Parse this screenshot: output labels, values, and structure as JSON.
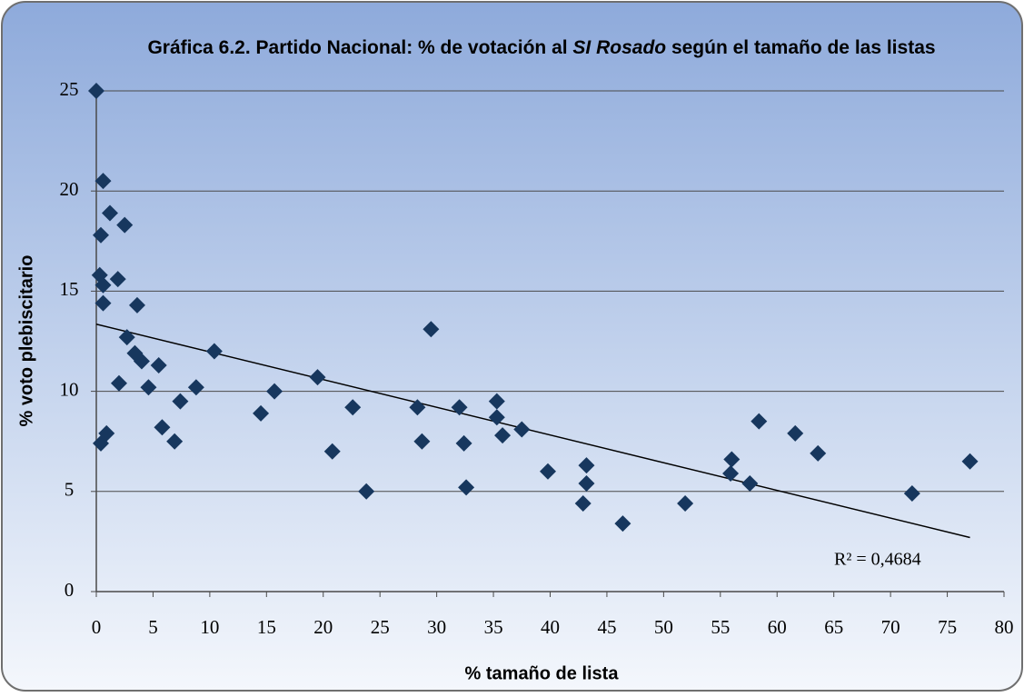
{
  "chart_data": {
    "type": "scatter",
    "title": [
      {
        "text": "Gráfica 6.2. Partido Nacional: % de votación al ",
        "italic": false
      },
      {
        "text": "SI Rosado",
        "italic": true
      },
      {
        "text": " según el tamaño de las listas",
        "italic": false
      }
    ],
    "xlabel": "% tamaño de lista",
    "ylabel": "% voto plebiscitario",
    "xlim": [
      0,
      80
    ],
    "ylim": [
      0,
      25
    ],
    "xticks": [
      0,
      5,
      10,
      15,
      20,
      25,
      30,
      35,
      40,
      45,
      50,
      55,
      60,
      65,
      70,
      75,
      80
    ],
    "yticks": [
      0,
      5,
      10,
      15,
      20,
      25
    ],
    "grid": true,
    "color": "#17375e",
    "x": [
      0,
      0.6,
      0.4,
      1.2,
      2.5,
      0.3,
      0.6,
      0.6,
      1.9,
      3.6,
      2.7,
      3.4,
      4.0,
      5.5,
      4.6,
      2.0,
      10.4,
      8.8,
      7.4,
      5.8,
      6.9,
      0.9,
      0.4,
      14.5,
      15.7,
      19.5,
      20.8,
      22.6,
      23.8,
      28.3,
      29.5,
      28.7,
      32.0,
      32.4,
      32.6,
      35.3,
      35.3,
      35.8,
      37.5,
      39.8,
      43.2,
      43.2,
      42.9,
      46.4,
      51.9,
      56.0,
      55.9,
      57.6,
      58.4,
      61.6,
      63.6,
      71.9,
      77.0
    ],
    "values": [
      25,
      20.5,
      17.8,
      18.9,
      18.3,
      15.8,
      15.3,
      14.4,
      15.6,
      14.3,
      12.7,
      11.9,
      11.5,
      11.3,
      10.2,
      10.4,
      12.0,
      10.2,
      9.5,
      8.2,
      7.5,
      7.9,
      7.4,
      8.9,
      10.0,
      10.7,
      7.0,
      9.2,
      5.0,
      9.2,
      13.1,
      7.5,
      9.2,
      7.4,
      5.2,
      9.5,
      8.7,
      7.8,
      8.1,
      6.0,
      6.3,
      5.4,
      4.4,
      3.4,
      4.4,
      6.6,
      5.9,
      5.4,
      8.5,
      7.9,
      6.9,
      4.9,
      6.5
    ],
    "trendline": {
      "x": [
        0,
        77
      ],
      "values": [
        13.35,
        2.7
      ],
      "color": "#000000"
    },
    "annotation": "R² = 0,4684"
  }
}
